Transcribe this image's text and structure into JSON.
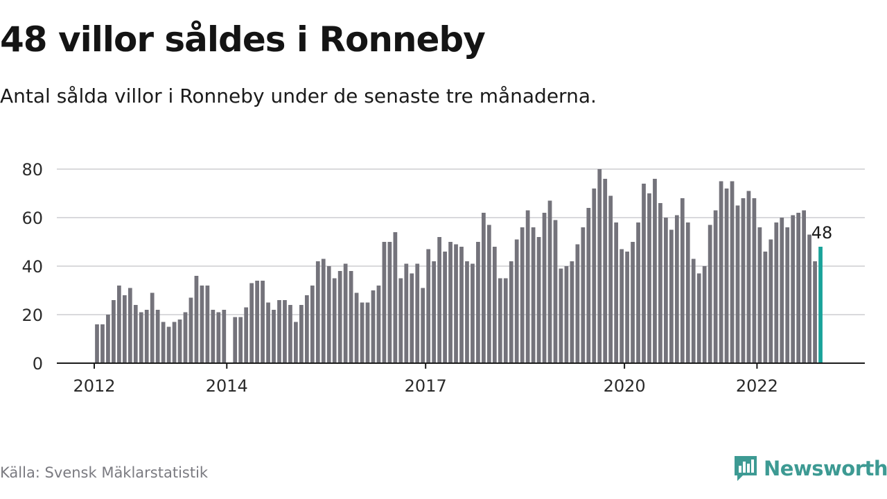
{
  "title": "48 villor såldes i Ronneby",
  "subtitle": "Antal sålda villor i Ronneby under de senaste tre månaderna.",
  "source": "Källa: Svensk Mäklarstatistik",
  "brand": {
    "name": "Newsworthy",
    "color": "#3d9a93"
  },
  "chart_data": {
    "type": "bar",
    "x_start": "2012-01",
    "x_end": "2023-01",
    "ylim": [
      0,
      85
    ],
    "yticks": [
      0,
      20,
      40,
      60,
      80
    ],
    "xticks": [
      {
        "label": "2012",
        "date": "2012-01"
      },
      {
        "label": "2014",
        "date": "2014-01"
      },
      {
        "label": "2017",
        "date": "2017-01"
      },
      {
        "label": "2020",
        "date": "2020-01"
      },
      {
        "label": "2022",
        "date": "2022-01"
      }
    ],
    "bar_color": "#74737b",
    "highlight_color": "#1aa39a",
    "series": [
      {
        "values": [
          16,
          16,
          20,
          26,
          32,
          28,
          31,
          24,
          21,
          22,
          29,
          22,
          17,
          15,
          17,
          18,
          21,
          27,
          36,
          32,
          32,
          22,
          21,
          22,
          null,
          19,
          19,
          23,
          33,
          34,
          34,
          25,
          22,
          26,
          26,
          24,
          17,
          24,
          28,
          32,
          42,
          43,
          40,
          35,
          38,
          41,
          38,
          29,
          25,
          25,
          30,
          32,
          50,
          50,
          54,
          35,
          41,
          37,
          41,
          31,
          47,
          42,
          52,
          46,
          50,
          49,
          48,
          42,
          41,
          50,
          62,
          57,
          48,
          35,
          35,
          42,
          51,
          56,
          63,
          56,
          52,
          62,
          67,
          59,
          39,
          40,
          42,
          49,
          56,
          64,
          72,
          80,
          76,
          69,
          58,
          47,
          46,
          50,
          58,
          74,
          70,
          76,
          66,
          60,
          55,
          61,
          68,
          58,
          43,
          37,
          40,
          57,
          63,
          75,
          72,
          75,
          65,
          68,
          71,
          68,
          56,
          46,
          51,
          58,
          60,
          56,
          61,
          62,
          63,
          53,
          42,
          48
        ]
      }
    ],
    "highlight_label": "48"
  }
}
